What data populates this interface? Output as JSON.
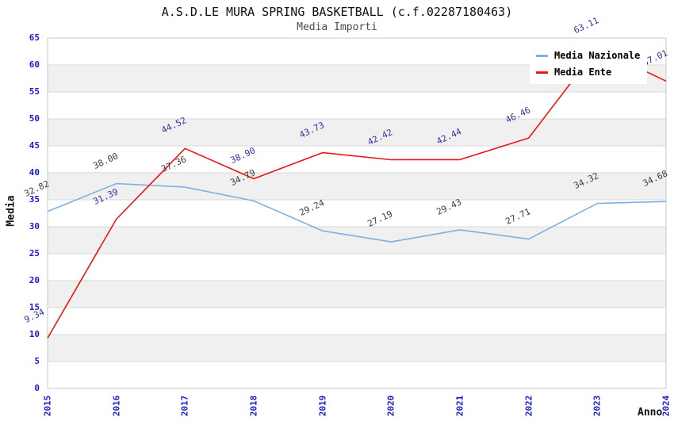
{
  "chart_data": {
    "type": "line",
    "title": "A.S.D.LE MURA SPRING BASKETBALL (c.f.02287180463)",
    "subtitle": "Media Importi",
    "xlabel": "Anno",
    "ylabel": "Media",
    "x": [
      "2015",
      "2016",
      "2017",
      "2018",
      "2019",
      "2020",
      "2021",
      "2022",
      "2023",
      "2024"
    ],
    "ylim": [
      0,
      65
    ],
    "ytick_step": 5,
    "grid": "horizontal-gridlines-with-alternating-bands",
    "legend_position": "top-right",
    "point_label_format": "two-decimals",
    "series": [
      {
        "name": "Media Nazionale",
        "color": "#7cb0e2",
        "label_color": "#3c3c3c",
        "values": [
          32.82,
          38.0,
          37.36,
          34.79,
          29.24,
          27.19,
          29.43,
          27.71,
          34.32,
          34.68
        ]
      },
      {
        "name": "Media Ente",
        "color": "#e81712",
        "label_color": "#32329e",
        "values": [
          9.34,
          31.39,
          44.52,
          38.9,
          43.73,
          42.42,
          42.44,
          46.46,
          63.11,
          57.01
        ]
      }
    ]
  },
  "colors": {
    "tick_label": "#1a1acd",
    "band": "#f0f0f0",
    "gridline": "#d9d9d9",
    "plot_border": "#c9c9c9",
    "background": "#ffffff",
    "title": "#111111",
    "subtitle": "#4a4a4a",
    "legend_text": "#000000"
  }
}
